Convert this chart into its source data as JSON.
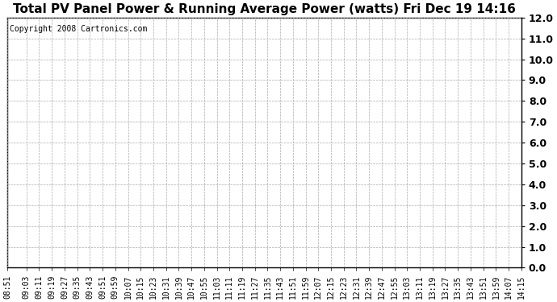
{
  "title": "Total PV Panel Power & Running Average Power (watts) Fri Dec 19 14:16",
  "copyright_text": "Copyright 2008 Cartronics.com",
  "ylim": [
    0.0,
    12.0
  ],
  "yticks": [
    0.0,
    1.0,
    2.0,
    3.0,
    4.0,
    5.0,
    6.0,
    7.0,
    8.0,
    9.0,
    10.0,
    11.0,
    12.0
  ],
  "x_labels": [
    "08:51",
    "09:03",
    "09:11",
    "09:19",
    "09:27",
    "09:35",
    "09:43",
    "09:51",
    "09:59",
    "10:07",
    "10:15",
    "10:23",
    "10:31",
    "10:39",
    "10:47",
    "10:55",
    "11:03",
    "11:11",
    "11:19",
    "11:27",
    "11:35",
    "11:43",
    "11:51",
    "11:59",
    "12:07",
    "12:15",
    "12:23",
    "12:31",
    "12:39",
    "12:47",
    "12:55",
    "13:03",
    "13:11",
    "13:19",
    "13:27",
    "13:35",
    "13:43",
    "13:51",
    "13:59",
    "14:07",
    "14:15"
  ],
  "background_color": "#ffffff",
  "plot_bg_color": "#ffffff",
  "grid_color": "#aaaaaa",
  "grid_linestyle": "--",
  "grid_linewidth": 0.5,
  "title_fontsize": 11,
  "tick_fontsize": 7,
  "ytick_fontsize": 9,
  "copyright_fontsize": 7,
  "border_color": "#000000"
}
